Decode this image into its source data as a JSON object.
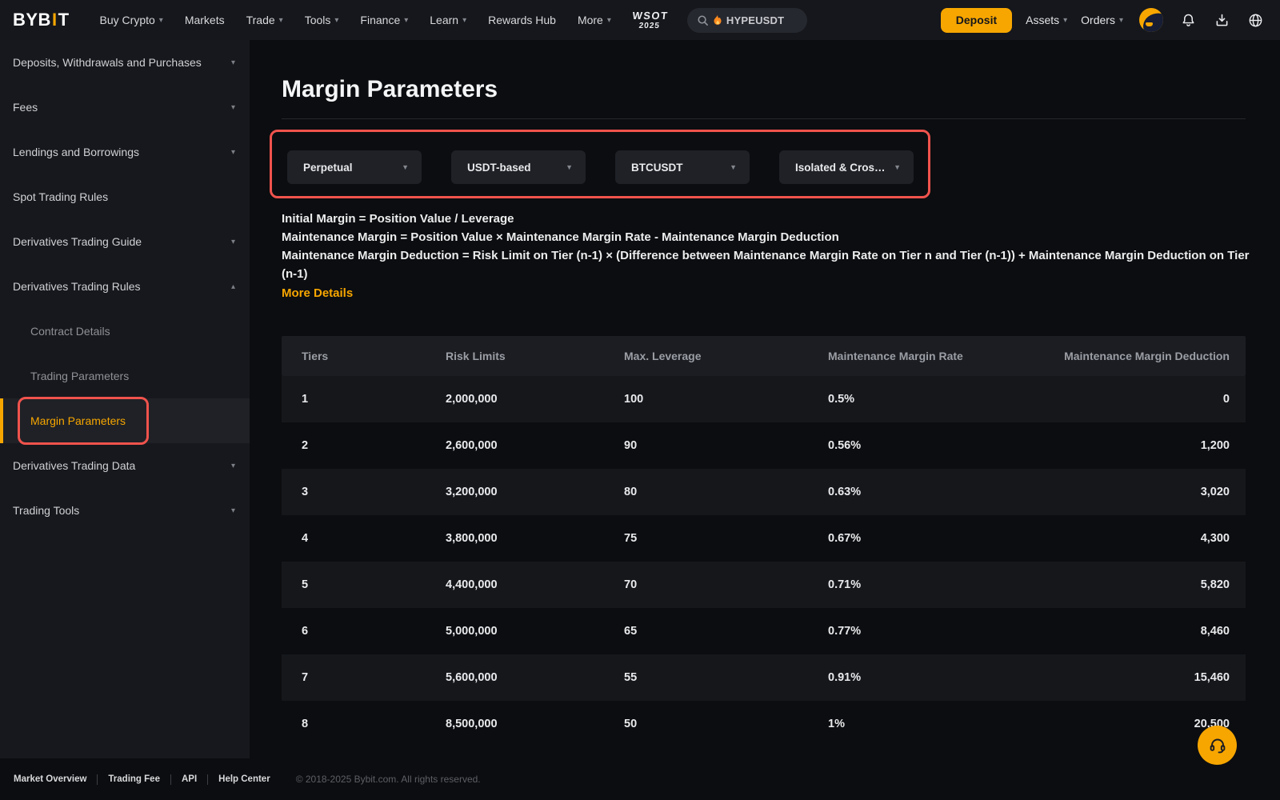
{
  "brand": {
    "prefix": "BYB",
    "accent": "I",
    "suffix": "T"
  },
  "nav": {
    "menu": [
      {
        "label": "Buy Crypto",
        "caret": true
      },
      {
        "label": "Markets",
        "caret": false
      },
      {
        "label": "Trade",
        "caret": true
      },
      {
        "label": "Tools",
        "caret": true
      },
      {
        "label": "Finance",
        "caret": true
      },
      {
        "label": "Learn",
        "caret": true
      },
      {
        "label": "Rewards Hub",
        "caret": false
      },
      {
        "label": "More",
        "caret": true
      }
    ],
    "wsot_line1": "WSOT",
    "wsot_line2": "2025",
    "search_query": "HYPEUSDT",
    "deposit_label": "Deposit",
    "assets_label": "Assets",
    "orders_label": "Orders"
  },
  "sidebar": {
    "items": [
      {
        "label": "Deposits, Withdrawals and Purchases",
        "caret": "down",
        "sub": false,
        "active": false
      },
      {
        "label": "Fees",
        "caret": "down",
        "sub": false,
        "active": false
      },
      {
        "label": "Lendings and Borrowings",
        "caret": "down",
        "sub": false,
        "active": false
      },
      {
        "label": "Spot Trading Rules",
        "caret": null,
        "sub": false,
        "active": false
      },
      {
        "label": "Derivatives Trading Guide",
        "caret": "down",
        "sub": false,
        "active": false
      },
      {
        "label": "Derivatives Trading Rules",
        "caret": "up",
        "sub": false,
        "active": false
      },
      {
        "label": "Contract Details",
        "caret": null,
        "sub": true,
        "active": false
      },
      {
        "label": "Trading Parameters",
        "caret": null,
        "sub": true,
        "active": false
      },
      {
        "label": "Margin Parameters",
        "caret": null,
        "sub": true,
        "active": true
      },
      {
        "label": "Derivatives Trading Data",
        "caret": "down",
        "sub": false,
        "active": false
      },
      {
        "label": "Trading Tools",
        "caret": "down",
        "sub": false,
        "active": false
      }
    ]
  },
  "main": {
    "title": "Margin Parameters",
    "filters": [
      {
        "value": "Perpetual"
      },
      {
        "value": "USDT-based"
      },
      {
        "value": "BTCUSDT"
      },
      {
        "value": "Isolated & Cross ..."
      }
    ],
    "formulas": [
      "Initial Margin = Position Value / Leverage",
      "Maintenance Margin = Position Value × Maintenance Margin Rate - Maintenance Margin Deduction",
      "Maintenance Margin Deduction = Risk Limit on Tier (n-1) × (Difference between Maintenance Margin Rate on Tier n and Tier (n-1)) + Maintenance Margin Deduction on Tier (n-1)"
    ],
    "more_details": "More Details",
    "table": {
      "columns": [
        "Tiers",
        "Risk Limits",
        "Max. Leverage",
        "Maintenance Margin Rate",
        "Maintenance Margin Deduction"
      ],
      "rows": [
        [
          "1",
          "2,000,000",
          "100",
          "0.5%",
          "0"
        ],
        [
          "2",
          "2,600,000",
          "90",
          "0.56%",
          "1,200"
        ],
        [
          "3",
          "3,200,000",
          "80",
          "0.63%",
          "3,020"
        ],
        [
          "4",
          "3,800,000",
          "75",
          "0.67%",
          "4,300"
        ],
        [
          "5",
          "4,400,000",
          "70",
          "0.71%",
          "5,820"
        ],
        [
          "6",
          "5,000,000",
          "65",
          "0.77%",
          "8,460"
        ],
        [
          "7",
          "5,600,000",
          "55",
          "0.91%",
          "15,460"
        ],
        [
          "8",
          "8,500,000",
          "50",
          "1%",
          "20,500"
        ]
      ]
    }
  },
  "footer": {
    "links": [
      "Market Overview",
      "Trading Fee",
      "API",
      "Help Center"
    ],
    "copyright": "© 2018-2025 Bybit.com. All rights reserved."
  },
  "icons": {
    "caret_down": "▾",
    "caret_up": "▴",
    "filter_caret": "▼",
    "search": "magnifier",
    "flame": "flame",
    "bell": "notification-bell",
    "download": "download-tray",
    "globe": "language-globe",
    "support": "headset"
  },
  "colors": {
    "accent": "#f7a600",
    "annotation": "#f0534d"
  }
}
